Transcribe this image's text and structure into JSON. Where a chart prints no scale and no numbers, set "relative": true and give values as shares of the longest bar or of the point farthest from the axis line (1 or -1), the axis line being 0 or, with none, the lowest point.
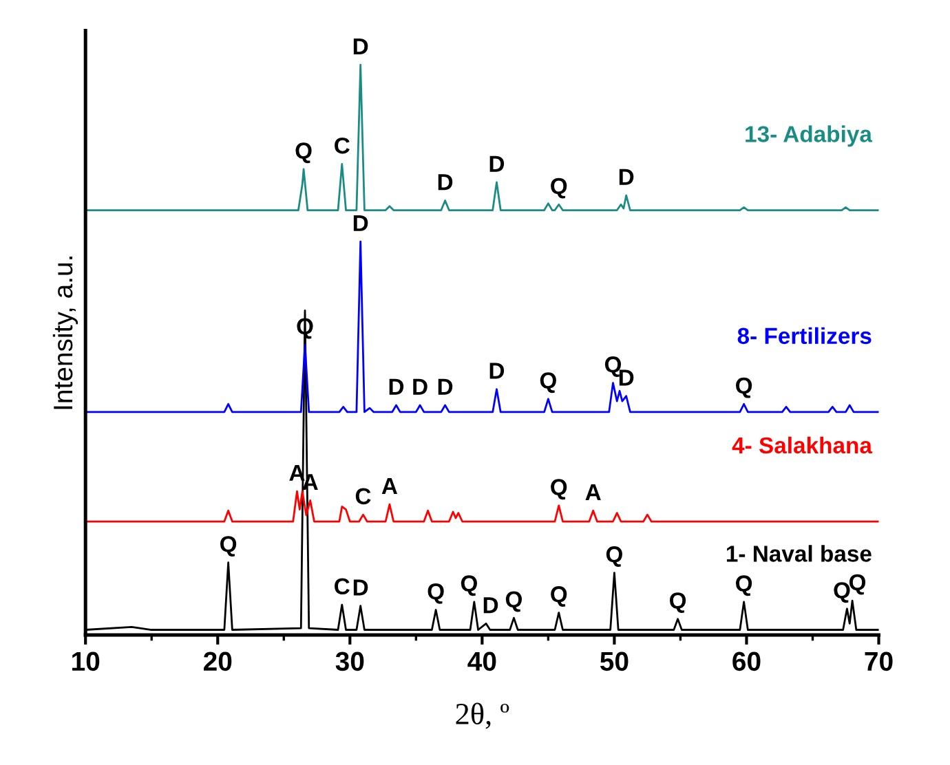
{
  "chart_data": {
    "type": "line",
    "relative": true,
    "xlabel": "2θ, º",
    "ylabel": "Intensity, a.u.",
    "xlim": [
      10,
      70
    ],
    "xticks": [
      10,
      20,
      30,
      40,
      50,
      60,
      70
    ],
    "tick_labels": "x",
    "grid": false,
    "legend": false,
    "marker": "none",
    "line_style": "solid",
    "series": [
      {
        "name": "13- Adabiya",
        "color": "#1a8c84",
        "x": [
          10,
          26.1,
          26.4,
          26.5,
          26.8,
          29.1,
          29.4,
          29.7,
          30.5,
          30.8,
          31.1,
          32.7,
          33.0,
          33.3,
          36.9,
          37.2,
          37.5,
          40.8,
          41.1,
          41.4,
          44.7,
          45.0,
          45.3,
          45.5,
          45.8,
          46.1,
          50.2,
          50.5,
          50.7,
          50.9,
          51.2,
          59.5,
          59.8,
          60.1,
          67.2,
          67.5,
          67.8,
          70
        ],
        "values": [
          0.745,
          0.745,
          0.79,
          0.817,
          0.745,
          0.745,
          0.826,
          0.745,
          0.745,
          1.0,
          0.745,
          0.745,
          0.752,
          0.745,
          0.745,
          0.762,
          0.745,
          0.745,
          0.794,
          0.745,
          0.745,
          0.757,
          0.745,
          0.745,
          0.755,
          0.745,
          0.745,
          0.755,
          0.748,
          0.771,
          0.745,
          0.745,
          0.75,
          0.745,
          0.745,
          0.75,
          0.745,
          0.745
        ]
      },
      {
        "name": "8- Fertilizers",
        "color": "#0000ff",
        "x": [
          10,
          20.5,
          20.8,
          21.1,
          26.3,
          26.6,
          26.9,
          29.2,
          29.5,
          29.8,
          30.5,
          30.8,
          31.1,
          31.5,
          31.8,
          33.2,
          33.5,
          33.8,
          35.0,
          35.3,
          35.6,
          36.9,
          37.2,
          37.5,
          40.8,
          41.1,
          41.4,
          44.7,
          45.0,
          45.3,
          49.6,
          49.9,
          50.2,
          50.4,
          50.6,
          50.9,
          51.2,
          59.5,
          59.8,
          60.1,
          62.7,
          63,
          63.3,
          66.2,
          66.5,
          66.8,
          67.5,
          67.8,
          68.1,
          70
        ],
        "values": [
          0.391,
          0.391,
          0.405,
          0.391,
          0.391,
          0.509,
          0.391,
          0.391,
          0.4,
          0.391,
          0.391,
          0.69,
          0.391,
          0.398,
          0.391,
          0.391,
          0.403,
          0.391,
          0.391,
          0.403,
          0.391,
          0.391,
          0.403,
          0.391,
          0.391,
          0.431,
          0.391,
          0.391,
          0.414,
          0.391,
          0.391,
          0.442,
          0.41,
          0.428,
          0.41,
          0.419,
          0.391,
          0.391,
          0.405,
          0.391,
          0.391,
          0.4,
          0.391,
          0.391,
          0.4,
          0.391,
          0.391,
          0.403,
          0.391,
          0.391
        ]
      },
      {
        "name": "4- Salakhana",
        "color": "#ff0000",
        "x": [
          10,
          20.5,
          20.8,
          21.1,
          25.7,
          26.0,
          26.2,
          26.4,
          26.7,
          27.0,
          27.3,
          29.2,
          29.4,
          29.7,
          30.0,
          30.7,
          31.0,
          31.3,
          32.7,
          33.0,
          33.3,
          35.6,
          35.9,
          36.2,
          37.5,
          37.8,
          38.0,
          38.2,
          38.5,
          45.5,
          45.8,
          46.1,
          48.1,
          48.4,
          48.7,
          49.9,
          50.2,
          50.5,
          52.2,
          52.5,
          52.8,
          70
        ],
        "values": [
          0.199,
          0.199,
          0.218,
          0.199,
          0.199,
          0.252,
          0.22,
          0.252,
          0.21,
          0.236,
          0.199,
          0.199,
          0.225,
          0.22,
          0.199,
          0.199,
          0.211,
          0.199,
          0.199,
          0.229,
          0.199,
          0.199,
          0.218,
          0.199,
          0.199,
          0.216,
          0.205,
          0.214,
          0.199,
          0.199,
          0.227,
          0.199,
          0.199,
          0.218,
          0.199,
          0.199,
          0.214,
          0.199,
          0.199,
          0.211,
          0.199,
          0.199
        ]
      },
      {
        "name": "1- Naval base",
        "color": "#000000",
        "x": [
          10,
          13.5,
          15,
          20.5,
          20.8,
          21.1,
          26.3,
          26.6,
          26.9,
          29.1,
          29.4,
          29.7,
          30.5,
          30.8,
          31.1,
          36.2,
          36.5,
          36.8,
          39.1,
          39.4,
          39.7,
          40.3,
          40.6,
          42.1,
          42.4,
          42.7,
          45.5,
          45.8,
          46.1,
          49.7,
          50.0,
          50.3,
          54.5,
          54.8,
          55.1,
          59.5,
          59.8,
          60.1,
          67.3,
          67.6,
          67.8,
          68.0,
          68.3,
          70
        ],
        "values": [
          0.009,
          0.014,
          0.009,
          0.009,
          0.127,
          0.009,
          0.012,
          0.569,
          0.012,
          0.009,
          0.053,
          0.009,
          0.009,
          0.051,
          0.009,
          0.009,
          0.044,
          0.009,
          0.009,
          0.058,
          0.009,
          0.02,
          0.009,
          0.009,
          0.03,
          0.009,
          0.009,
          0.039,
          0.009,
          0.009,
          0.109,
          0.009,
          0.009,
          0.028,
          0.009,
          0.009,
          0.058,
          0.009,
          0.009,
          0.046,
          0.02,
          0.06,
          0.009,
          0.009
        ]
      }
    ],
    "annotations": [
      {
        "text": "Q",
        "x": 26.5,
        "y": 0.817
      },
      {
        "text": "C",
        "x": 29.4,
        "y": 0.826
      },
      {
        "text": "D",
        "x": 30.8,
        "y": 1.0
      },
      {
        "text": "D",
        "x": 37.2,
        "y": 0.762
      },
      {
        "text": "D",
        "x": 41.1,
        "y": 0.794
      },
      {
        "text": "Q",
        "x": 45.8,
        "y": 0.755
      },
      {
        "text": "D",
        "x": 50.9,
        "y": 0.771
      },
      {
        "text": "D",
        "x": 30.8,
        "y": 0.69
      },
      {
        "text": "Q",
        "x": 26.6,
        "y": 0.509
      },
      {
        "text": "D",
        "x": 33.5,
        "y": 0.403
      },
      {
        "text": "D",
        "x": 35.3,
        "y": 0.403
      },
      {
        "text": "D",
        "x": 37.2,
        "y": 0.403
      },
      {
        "text": "D",
        "x": 41.1,
        "y": 0.431
      },
      {
        "text": "Q",
        "x": 45.0,
        "y": 0.414
      },
      {
        "text": "Q",
        "x": 49.9,
        "y": 0.442
      },
      {
        "text": "D",
        "x": 50.9,
        "y": 0.419
      },
      {
        "text": "Q",
        "x": 59.8,
        "y": 0.405
      },
      {
        "text": "A",
        "x": 26.0,
        "y": 0.252
      },
      {
        "text": "A",
        "x": 27.0,
        "y": 0.236
      },
      {
        "text": "C",
        "x": 31.0,
        "y": 0.211
      },
      {
        "text": "A",
        "x": 33.0,
        "y": 0.229
      },
      {
        "text": "Q",
        "x": 45.8,
        "y": 0.227
      },
      {
        "text": "A",
        "x": 48.4,
        "y": 0.218
      },
      {
        "text": "Q",
        "x": 20.8,
        "y": 0.127
      },
      {
        "text": "C",
        "x": 29.4,
        "y": 0.053
      },
      {
        "text": "D",
        "x": 30.8,
        "y": 0.051
      },
      {
        "text": "Q",
        "x": 36.5,
        "y": 0.044
      },
      {
        "text": "Q",
        "x": 39.4,
        "y": 0.058
      },
      {
        "text": "D",
        "x": 40.3,
        "y": 0.02
      },
      {
        "text": "Q",
        "x": 42.4,
        "y": 0.03
      },
      {
        "text": "Q",
        "x": 45.8,
        "y": 0.039
      },
      {
        "text": "Q",
        "x": 50.0,
        "y": 0.109
      },
      {
        "text": "Q",
        "x": 54.8,
        "y": 0.028
      },
      {
        "text": "Q",
        "x": 59.8,
        "y": 0.058
      },
      {
        "text": "Q",
        "x": 67.6,
        "y": 0.046
      },
      {
        "text": "Q",
        "x": 68.0,
        "y": 0.06
      }
    ]
  }
}
